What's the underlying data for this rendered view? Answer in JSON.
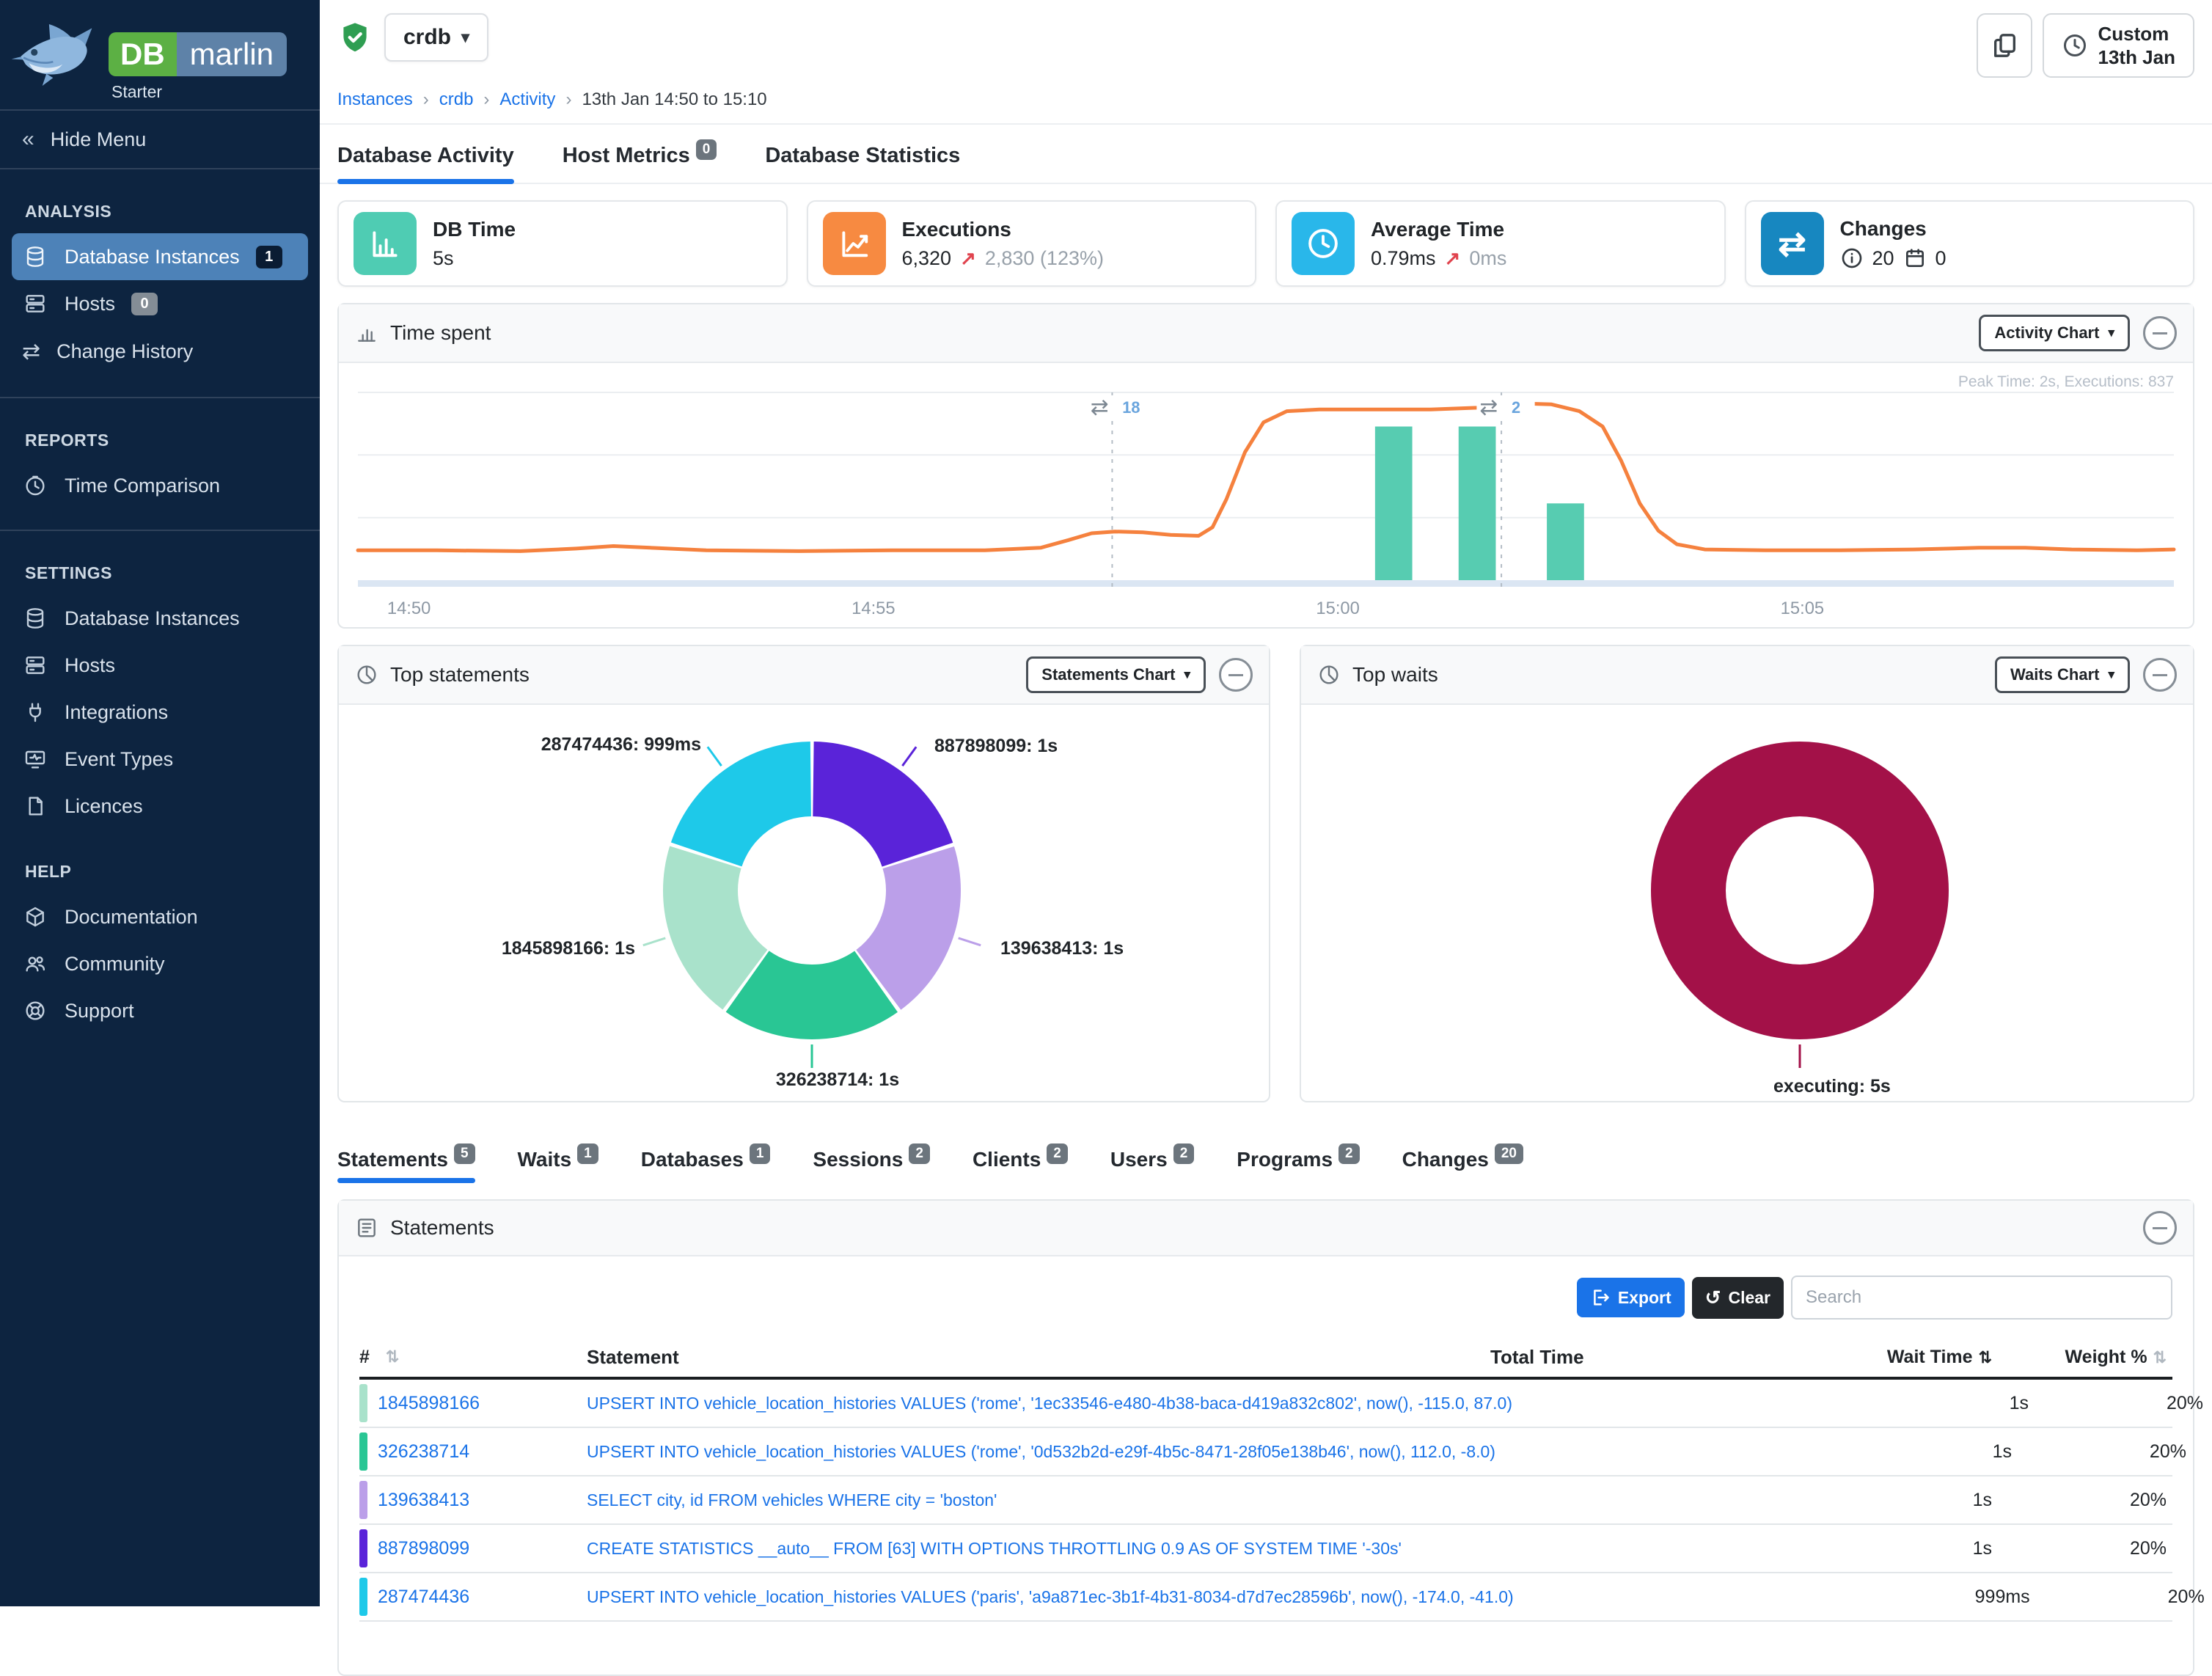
{
  "brand": {
    "db_badge": "DB",
    "marlin_badge": "marlin",
    "tier": "Starter"
  },
  "icons": {
    "collapse_left": "«",
    "caret": "▾",
    "sort": "⇅",
    "undo": "↺",
    "swap": "⇄",
    "up_arrow": "↗",
    "crumb_sep": "›"
  },
  "sidebar": {
    "hide_menu": "Hide Menu",
    "sections": [
      {
        "title": "ANALYSIS",
        "items": [
          {
            "label": "Database Instances",
            "badge": "1"
          },
          {
            "label": "Hosts",
            "badge": "0"
          },
          {
            "label": "Change History"
          }
        ]
      },
      {
        "title": "REPORTS",
        "items": [
          {
            "label": "Time Comparison"
          }
        ]
      },
      {
        "title": "SETTINGS",
        "items": [
          {
            "label": "Database Instances"
          },
          {
            "label": "Hosts"
          },
          {
            "label": "Integrations"
          },
          {
            "label": "Event Types"
          },
          {
            "label": "Licences"
          }
        ]
      },
      {
        "title": "HELP",
        "items": [
          {
            "label": "Documentation"
          },
          {
            "label": "Community"
          },
          {
            "label": "Support"
          }
        ]
      }
    ]
  },
  "topbar": {
    "instance": "crdb"
  },
  "breadcrumb": {
    "links": [
      "Instances",
      "crdb",
      "Activity"
    ],
    "current": "13th Jan 14:50 to 15:10"
  },
  "time_button": {
    "line1": "Custom",
    "line2": "13th Jan"
  },
  "tabs": [
    {
      "label": "Database Activity"
    },
    {
      "label": "Host Metrics",
      "badge": "0"
    },
    {
      "label": "Database Statistics"
    }
  ],
  "cards": [
    {
      "title": "DB Time",
      "value": "5s",
      "color": "#4fccb3"
    },
    {
      "title": "Executions",
      "value": "6,320",
      "delta": "2,830 (123%)",
      "color": "#f78a41"
    },
    {
      "title": "Average Time",
      "value": "0.79ms",
      "delta": "0ms",
      "color": "#29b7ea"
    },
    {
      "title": "Changes",
      "info_value": "20",
      "calendar_value": "0",
      "color": "#1787c0"
    }
  ],
  "panels": {
    "time_spent": {
      "title": "Time spent",
      "button": "Activity Chart",
      "note": "Peak Time: 2s, Executions: 837"
    },
    "top_statements": {
      "title": "Top statements",
      "button": "Statements Chart"
    },
    "top_waits": {
      "title": "Top waits",
      "button": "Waits Chart"
    },
    "statements": {
      "title": "Statements",
      "export": "Export",
      "clear": "Clear",
      "search_placeholder": "Search",
      "columns": {
        "num": "#",
        "statement": "Statement",
        "total": "Total Time",
        "wait": "Wait Time",
        "weight": "Weight %"
      },
      "rows": [
        {
          "id": "1845898166",
          "color": "#a9e2cb",
          "statement": "UPSERT INTO vehicle_location_histories VALUES ('rome', '1ec33546-e480-4b38-baca-d419a832c802', now(), -115.0, 87.0)",
          "wait": "1s",
          "weight": "20%"
        },
        {
          "id": "326238714",
          "color": "#29c694",
          "statement": "UPSERT INTO vehicle_location_histories VALUES ('rome', '0d532b2d-e29f-4b5c-8471-28f05e138b46', now(), 112.0, -8.0)",
          "wait": "1s",
          "weight": "20%"
        },
        {
          "id": "139638413",
          "color": "#bb9fe9",
          "statement": "SELECT city, id FROM vehicles WHERE city = 'boston'",
          "wait": "1s",
          "weight": "20%"
        },
        {
          "id": "887898099",
          "color": "#5a23d9",
          "statement": "CREATE STATISTICS __auto__ FROM [63] WITH OPTIONS THROTTLING 0.9 AS OF SYSTEM TIME '-30s'",
          "wait": "1s",
          "weight": "20%"
        },
        {
          "id": "287474436",
          "color": "#1ec9e9",
          "statement": "UPSERT INTO vehicle_location_histories VALUES ('paris', 'a9a871ec-3b1f-4b31-8034-d7d7ec28596b', now(), -174.0, -41.0)",
          "wait": "999ms",
          "weight": "20%"
        }
      ]
    }
  },
  "detail_tabs": [
    {
      "label": "Statements",
      "badge": "5"
    },
    {
      "label": "Waits",
      "badge": "1"
    },
    {
      "label": "Databases",
      "badge": "1"
    },
    {
      "label": "Sessions",
      "badge": "2"
    },
    {
      "label": "Clients",
      "badge": "2"
    },
    {
      "label": "Users",
      "badge": "2"
    },
    {
      "label": "Programs",
      "badge": "2"
    },
    {
      "label": "Changes",
      "badge": "20"
    }
  ],
  "chart_data": [
    {
      "id": "time_spent",
      "type": "line",
      "title": "Time spent",
      "note": "Peak Time: 2s, Executions: 837",
      "x_axis": {
        "unit": "time of day (minutes after 14:50)",
        "xlim": [
          -0.55,
          19.0
        ],
        "ticks": [
          {
            "t": 0,
            "label": "14:50"
          },
          {
            "t": 5,
            "label": "14:55"
          },
          {
            "t": 10,
            "label": "15:00"
          },
          {
            "t": 15,
            "label": "15:05"
          }
        ]
      },
      "y_axis": {
        "unit": "seconds",
        "ylim": [
          0,
          2.2
        ],
        "grid": true
      },
      "series": [
        {
          "name": "Time",
          "type": "line",
          "color": "#f5813e",
          "points": [
            [
              -0.55,
              0.35
            ],
            [
              0.3,
              0.35
            ],
            [
              1.2,
              0.34
            ],
            [
              1.8,
              0.37
            ],
            [
              2.2,
              0.4
            ],
            [
              2.6,
              0.38
            ],
            [
              3.2,
              0.35
            ],
            [
              4.2,
              0.34
            ],
            [
              5.2,
              0.35
            ],
            [
              6.2,
              0.35
            ],
            [
              6.8,
              0.38
            ],
            [
              7.1,
              0.47
            ],
            [
              7.35,
              0.55
            ],
            [
              7.6,
              0.57
            ],
            [
              7.9,
              0.56
            ],
            [
              8.2,
              0.53
            ],
            [
              8.5,
              0.52
            ],
            [
              8.65,
              0.62
            ],
            [
              8.8,
              0.95
            ],
            [
              9.0,
              1.5
            ],
            [
              9.2,
              1.85
            ],
            [
              9.45,
              1.98
            ],
            [
              9.8,
              2.0
            ],
            [
              10.4,
              2.0
            ],
            [
              11.0,
              2.0
            ],
            [
              11.5,
              2.02
            ],
            [
              12.0,
              2.07
            ],
            [
              12.3,
              2.06
            ],
            [
              12.6,
              1.98
            ],
            [
              12.85,
              1.8
            ],
            [
              13.05,
              1.4
            ],
            [
              13.25,
              0.9
            ],
            [
              13.45,
              0.58
            ],
            [
              13.65,
              0.42
            ],
            [
              13.95,
              0.36
            ],
            [
              14.6,
              0.35
            ],
            [
              15.4,
              0.35
            ],
            [
              16.2,
              0.36
            ],
            [
              16.9,
              0.38
            ],
            [
              17.4,
              0.38
            ],
            [
              17.9,
              0.36
            ],
            [
              18.6,
              0.35
            ],
            [
              19.0,
              0.36
            ]
          ]
        },
        {
          "name": "Executions",
          "type": "bar",
          "color": "#57ccb1",
          "bar_width_min": 0.4,
          "points": [
            [
              10.6,
              1.8
            ],
            [
              11.5,
              1.8
            ],
            [
              12.45,
              0.9
            ]
          ]
        }
      ],
      "annotations": [
        {
          "t": 7.57,
          "icon": "change",
          "count": "18"
        },
        {
          "t": 11.76,
          "icon": "change",
          "count": "2"
        }
      ]
    },
    {
      "id": "top_statements",
      "type": "donut",
      "segments": [
        {
          "label": "887898099: 1s",
          "value": 20,
          "color": "#5a23d9"
        },
        {
          "label": "139638413: 1s",
          "value": 20,
          "color": "#bb9fe9"
        },
        {
          "label": "326238714: 1s",
          "value": 20,
          "color": "#29c694"
        },
        {
          "label": "1845898166: 1s",
          "value": 20,
          "color": "#a9e2cb"
        },
        {
          "label": "287474436: 999ms",
          "value": 20,
          "color": "#1ec9e9"
        }
      ]
    },
    {
      "id": "top_waits",
      "type": "donut",
      "segments": [
        {
          "label": "executing: 5s",
          "value": 100,
          "color": "#a31148"
        }
      ]
    }
  ]
}
